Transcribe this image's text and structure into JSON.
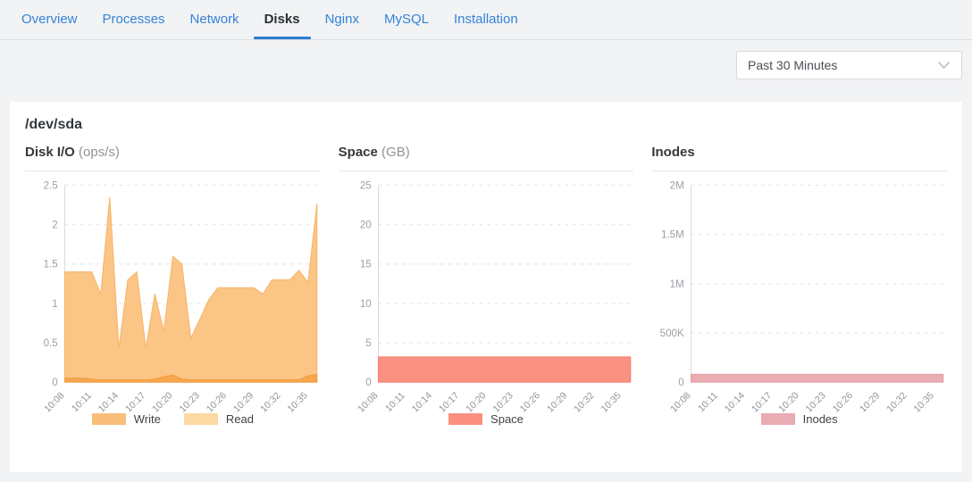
{
  "tabs": [
    {
      "label": "Overview",
      "active": false
    },
    {
      "label": "Processes",
      "active": false
    },
    {
      "label": "Network",
      "active": false
    },
    {
      "label": "Disks",
      "active": true
    },
    {
      "label": "Nginx",
      "active": false
    },
    {
      "label": "MySQL",
      "active": false
    },
    {
      "label": "Installation",
      "active": false
    }
  ],
  "toolbar": {
    "time_range": "Past 30 Minutes",
    "time_range_icon": "chevron-down"
  },
  "card": {
    "title": "/dev/sda"
  },
  "colors": {
    "tab_blue": "#3583d6",
    "active_underline": "#2d7cd3",
    "background": "#f2f3f5",
    "card": "#ffffff"
  },
  "chart_data": [
    {
      "type": "area",
      "title": "Disk I/O",
      "unit": "(ops/s)",
      "grid": "dashed",
      "legend_position": "bottom",
      "x": [
        "10:08",
        "10:09",
        "10:10",
        "10:11",
        "10:12",
        "10:13",
        "10:14",
        "10:15",
        "10:16",
        "10:17",
        "10:18",
        "10:19",
        "10:20",
        "10:21",
        "10:22",
        "10:23",
        "10:24",
        "10:25",
        "10:26",
        "10:27",
        "10:28",
        "10:29",
        "10:30",
        "10:31",
        "10:32",
        "10:33",
        "10:34",
        "10:35",
        "10:36"
      ],
      "x_tick_every": 3,
      "ylim": [
        0,
        2.5
      ],
      "yticks": [
        {
          "v": 0,
          "label": "0"
        },
        {
          "v": 0.5,
          "label": "0.5"
        },
        {
          "v": 1,
          "label": "1"
        },
        {
          "v": 1.5,
          "label": "1.5"
        },
        {
          "v": 2,
          "label": "2"
        },
        {
          "v": 2.5,
          "label": "2.5"
        }
      ],
      "series": [
        {
          "name": "Write",
          "color": "#f9be79",
          "fill": "#fbc585",
          "stroke": "#f8b265",
          "values": [
            1.4,
            1.4,
            1.4,
            1.4,
            1.12,
            2.35,
            0.43,
            1.3,
            1.4,
            0.43,
            1.12,
            0.65,
            1.6,
            1.5,
            0.56,
            0.8,
            1.05,
            1.2,
            1.2,
            1.2,
            1.2,
            1.2,
            1.12,
            1.3,
            1.3,
            1.3,
            1.42,
            1.27,
            2.27
          ]
        },
        {
          "name": "Read",
          "color": "#fcd9a2",
          "fill": "#f7a64c",
          "stroke": "#f29c42",
          "values": [
            0.05,
            0.05,
            0.05,
            0.04,
            0.03,
            0.03,
            0.03,
            0.03,
            0.03,
            0.03,
            0.04,
            0.07,
            0.09,
            0.04,
            0.03,
            0.03,
            0.03,
            0.03,
            0.03,
            0.03,
            0.03,
            0.03,
            0.03,
            0.03,
            0.03,
            0.03,
            0.03,
            0.08,
            0.1
          ]
        }
      ]
    },
    {
      "type": "area",
      "title": "Space",
      "unit": "(GB)",
      "grid": "dashed",
      "legend_position": "bottom",
      "x": [
        "10:08",
        "10:09",
        "10:10",
        "10:11",
        "10:12",
        "10:13",
        "10:14",
        "10:15",
        "10:16",
        "10:17",
        "10:18",
        "10:19",
        "10:20",
        "10:21",
        "10:22",
        "10:23",
        "10:24",
        "10:25",
        "10:26",
        "10:27",
        "10:28",
        "10:29",
        "10:30",
        "10:31",
        "10:32",
        "10:33",
        "10:34",
        "10:35",
        "10:36"
      ],
      "x_tick_every": 3,
      "ylim": [
        0,
        25
      ],
      "yticks": [
        {
          "v": 0,
          "label": "0"
        },
        {
          "v": 5,
          "label": "5"
        },
        {
          "v": 10,
          "label": "10"
        },
        {
          "v": 15,
          "label": "15"
        },
        {
          "v": 20,
          "label": "20"
        },
        {
          "v": 25,
          "label": "25"
        }
      ],
      "series": [
        {
          "name": "Space",
          "color": "#fb9080",
          "fill": "#fb9182",
          "stroke": "#f87e6c",
          "values": [
            3.2,
            3.2,
            3.2,
            3.2,
            3.2,
            3.2,
            3.2,
            3.2,
            3.2,
            3.2,
            3.2,
            3.2,
            3.2,
            3.2,
            3.2,
            3.2,
            3.2,
            3.2,
            3.2,
            3.2,
            3.2,
            3.2,
            3.2,
            3.2,
            3.2,
            3.2,
            3.2,
            3.2,
            3.2
          ]
        }
      ]
    },
    {
      "type": "area",
      "title": "Inodes",
      "unit": "",
      "grid": "dashed",
      "legend_position": "bottom",
      "x": [
        "10:08",
        "10:09",
        "10:10",
        "10:11",
        "10:12",
        "10:13",
        "10:14",
        "10:15",
        "10:16",
        "10:17",
        "10:18",
        "10:19",
        "10:20",
        "10:21",
        "10:22",
        "10:23",
        "10:24",
        "10:25",
        "10:26",
        "10:27",
        "10:28",
        "10:29",
        "10:30",
        "10:31",
        "10:32",
        "10:33",
        "10:34",
        "10:35",
        "10:36"
      ],
      "x_tick_every": 3,
      "ylim": [
        0,
        2000000
      ],
      "yticks": [
        {
          "v": 0,
          "label": "0"
        },
        {
          "v": 500000,
          "label": "500K"
        },
        {
          "v": 1000000,
          "label": "1M"
        },
        {
          "v": 1500000,
          "label": "1.5M"
        },
        {
          "v": 2000000,
          "label": "2M"
        }
      ],
      "series": [
        {
          "name": "Inodes",
          "color": "#e9acb2",
          "fill": "#e9adb3",
          "stroke": "#e29aa2",
          "values": [
            80000,
            80000,
            80000,
            80000,
            80000,
            80000,
            80000,
            80000,
            80000,
            80000,
            80000,
            80000,
            80000,
            80000,
            80000,
            80000,
            80000,
            80000,
            80000,
            80000,
            80000,
            80000,
            80000,
            80000,
            80000,
            80000,
            80000,
            80000,
            80000
          ]
        }
      ]
    }
  ]
}
